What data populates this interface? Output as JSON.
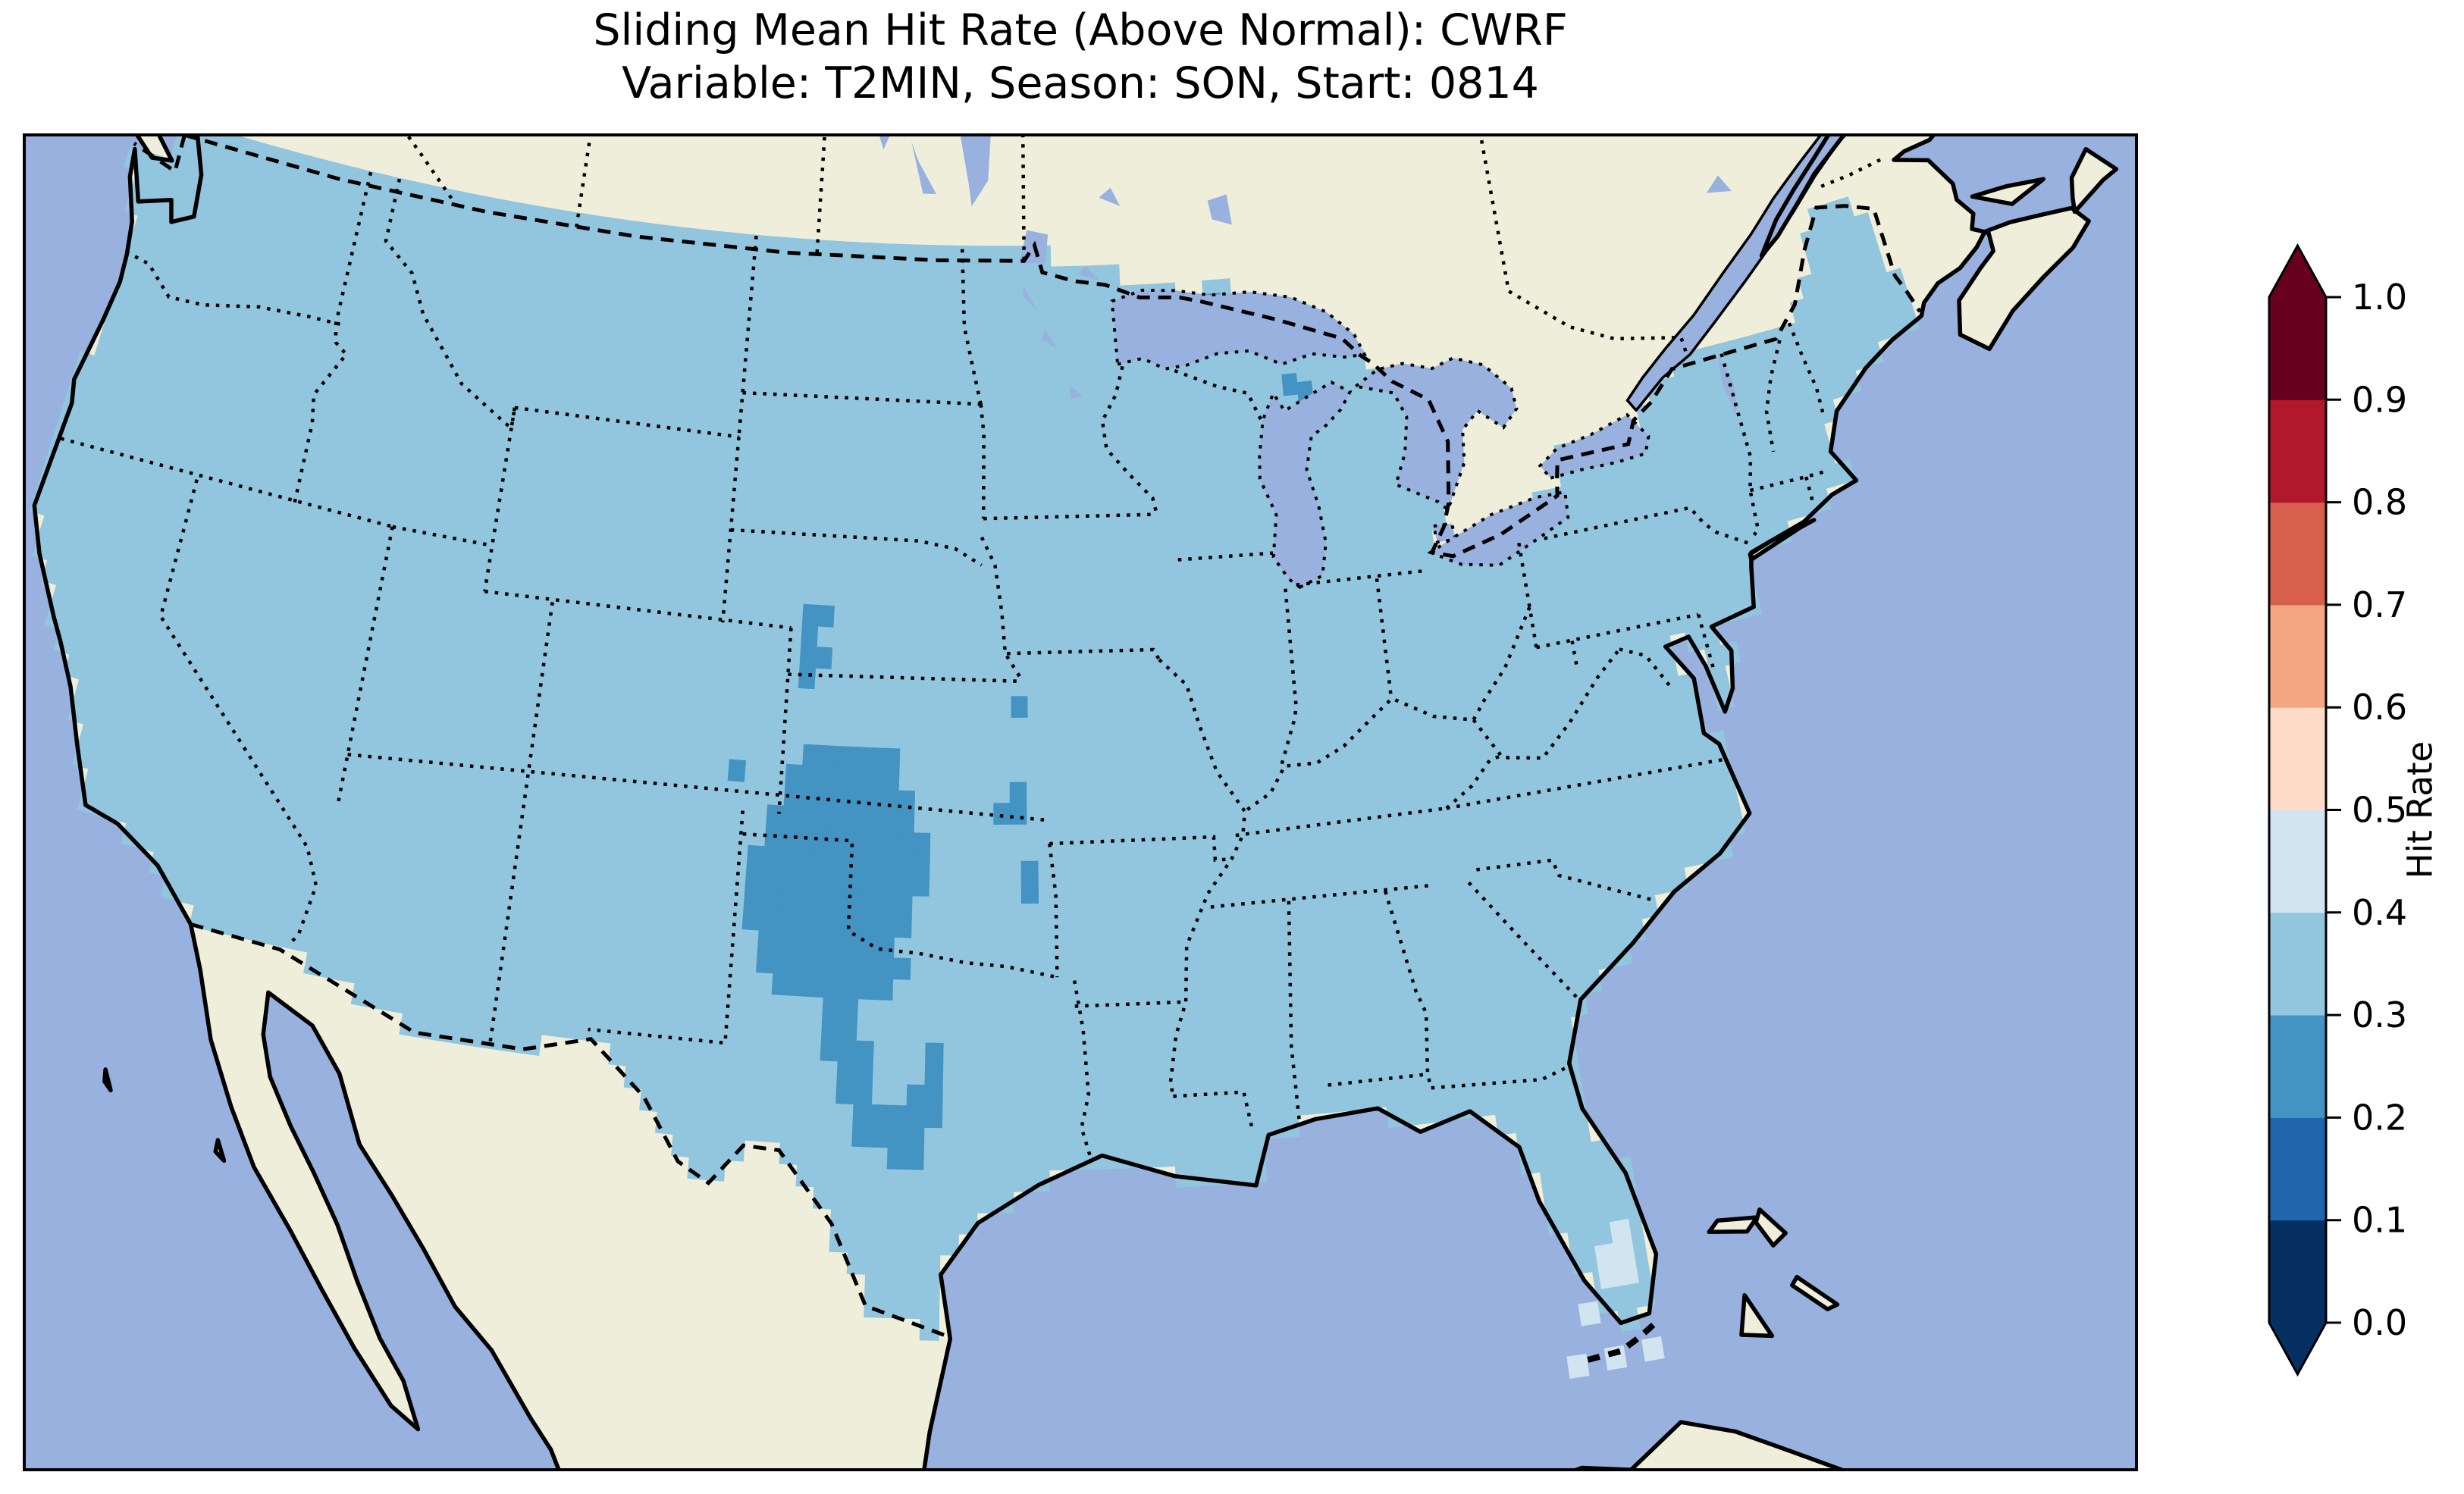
{
  "title": {
    "line1": "Sliding Mean Hit Rate (Above Normal): CWRF",
    "line2": "Variable: T2MIN, Season: SON, Start: 0814"
  },
  "colorbar": {
    "label": "Hit Rate",
    "tick_labels": [
      "0.0",
      "0.1",
      "0.2",
      "0.3",
      "0.4",
      "0.5",
      "0.6",
      "0.7",
      "0.8",
      "0.9",
      "1.0"
    ],
    "bin_colors_low_to_high": [
      "#053061",
      "#2166ac",
      "#4393c3",
      "#92c5de",
      "#d1e5f0",
      "#fddbc7",
      "#f4a582",
      "#d6604d",
      "#b2182b",
      "#67001f"
    ],
    "under_arrow_color": "#053061",
    "over_arrow_color": "#67001f"
  },
  "map": {
    "ocean_color": "#98b1de",
    "land_color": "#efeedb",
    "coastline_color": "#000000",
    "frame_color": "#000000",
    "state_border_style": "dotted",
    "country_border_style": "dashed"
  },
  "chart_data": {
    "type": "heatmap",
    "title": "Sliding Mean Hit Rate (Above Normal): CWRF",
    "subtitle": "Variable: T2MIN, Season: SON, Start: 0814",
    "model": "CWRF",
    "variable": "T2MIN",
    "season": "SON",
    "start": "0814",
    "colorbar_label": "Hit Rate",
    "value_range": [
      0.0,
      1.0
    ],
    "bin_edges": [
      0.0,
      0.1,
      0.2,
      0.3,
      0.4,
      0.5,
      0.6,
      0.7,
      0.8,
      0.9,
      1.0
    ],
    "colormap": "RdBu, 10 discrete bins, arrows for under/over range",
    "legend_position": "right",
    "projection": "Lambert Conformal over CONUS (Canada, Mexico, Cuba, Bahamas visible as no-data land)",
    "regions": [
      {
        "area": "Most of CONUS (coast to coast)",
        "hit_rate": "0.3-0.4"
      },
      {
        "area": "Large patch: SE Colorado / SW Kansas / Oklahoma panhandle / west Texas",
        "hit_rate": "0.2-0.3"
      },
      {
        "area": "Central Texas checkmark-shaped extension (Edwards Plateau)",
        "hit_rate": "0.2-0.3"
      },
      {
        "area": "Small cluster SW Nebraska",
        "hit_rate": "0.2-0.3"
      },
      {
        "area": "Scattered single cells: SE Kansas, NW Missouri, eastern Oklahoma, Lake Superior shore, Door Peninsula",
        "hit_rate": "0.2-0.3"
      },
      {
        "area": "South Florida cluster and three Florida Keys cells",
        "hit_rate": "0.4-0.5"
      },
      {
        "area": "Canada, Mexico, Cuba, Bahamas, oceans and Great Lakes",
        "hit_rate": "no data"
      }
    ]
  }
}
